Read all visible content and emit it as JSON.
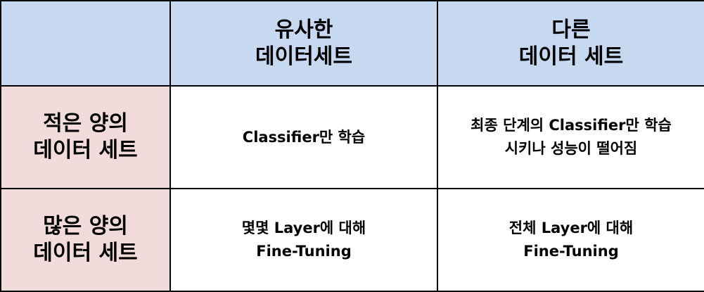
{
  "header": {
    "similar": [
      "유사한",
      "데이터세트"
    ],
    "different": [
      "다른",
      "데이터 세트"
    ]
  },
  "rows": [
    {
      "label": [
        "적은 양의",
        "데이터 세트"
      ],
      "similar": [
        "Classifier만 학습"
      ],
      "different": [
        "최종 단계의 Classifier만 학습",
        "시키나 성능이 떨어짐"
      ]
    },
    {
      "label": [
        "많은 양의",
        "데이터 세트"
      ],
      "similar": [
        "몇몇 Layer에 대해",
        "Fine-Tuning"
      ],
      "different": [
        "전체 Layer에 대해",
        "Fine-Tuning"
      ]
    }
  ],
  "colors": {
    "header_bg": "#c6d9f1",
    "row_header_bg": "#f2dcdb",
    "border": "#000000"
  }
}
